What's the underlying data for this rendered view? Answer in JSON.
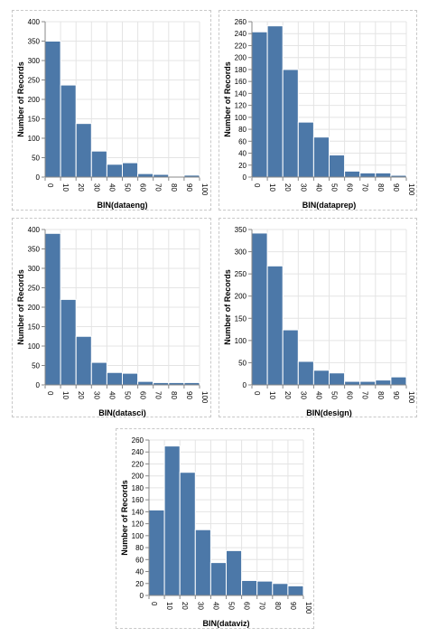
{
  "chart_data": [
    {
      "type": "bar",
      "xlabel": "BIN(dataeng)",
      "ylabel": "Number of Records",
      "xlim": [
        0,
        100
      ],
      "ylim": [
        0,
        400
      ],
      "x_ticks": [
        "0",
        "10",
        "20",
        "30",
        "40",
        "50",
        "60",
        "70",
        "80",
        "90",
        "100"
      ],
      "y_ticks": [
        "0",
        "50",
        "100",
        "150",
        "200",
        "250",
        "300",
        "350",
        "400"
      ],
      "grid": true,
      "bins": [
        [
          0,
          10
        ],
        [
          10,
          20
        ],
        [
          20,
          30
        ],
        [
          30,
          40
        ],
        [
          40,
          50
        ],
        [
          50,
          60
        ],
        [
          60,
          70
        ],
        [
          70,
          80
        ],
        [
          80,
          90
        ],
        [
          90,
          100
        ]
      ],
      "values": [
        350,
        237,
        138,
        67,
        33,
        37,
        9,
        7,
        2,
        5
      ]
    },
    {
      "type": "bar",
      "xlabel": "BIN(dataprep)",
      "ylabel": "Number of Records",
      "xlim": [
        0,
        100
      ],
      "ylim": [
        0,
        260
      ],
      "x_ticks": [
        "0",
        "10",
        "20",
        "30",
        "40",
        "50",
        "60",
        "70",
        "80",
        "90",
        "100"
      ],
      "y_ticks": [
        "0",
        "20",
        "40",
        "60",
        "80",
        "100",
        "120",
        "140",
        "160",
        "180",
        "200",
        "220",
        "240",
        "260"
      ],
      "grid": true,
      "bins": [
        [
          0,
          10
        ],
        [
          10,
          20
        ],
        [
          20,
          30
        ],
        [
          30,
          40
        ],
        [
          40,
          50
        ],
        [
          50,
          60
        ],
        [
          60,
          70
        ],
        [
          70,
          80
        ],
        [
          80,
          90
        ],
        [
          90,
          100
        ]
      ],
      "values": [
        243,
        253,
        180,
        92,
        67,
        37,
        10,
        7,
        7,
        3
      ]
    },
    {
      "type": "bar",
      "xlabel": "BIN(datasci)",
      "ylabel": "Number of Records",
      "xlim": [
        0,
        100
      ],
      "ylim": [
        0,
        400
      ],
      "x_ticks": [
        "0",
        "10",
        "20",
        "30",
        "40",
        "50",
        "60",
        "70",
        "80",
        "90",
        "100"
      ],
      "y_ticks": [
        "0",
        "50",
        "100",
        "150",
        "200",
        "250",
        "300",
        "350",
        "400"
      ],
      "grid": true,
      "bins": [
        [
          0,
          10
        ],
        [
          10,
          20
        ],
        [
          20,
          30
        ],
        [
          30,
          40
        ],
        [
          40,
          50
        ],
        [
          50,
          60
        ],
        [
          60,
          70
        ],
        [
          70,
          80
        ],
        [
          80,
          90
        ],
        [
          90,
          100
        ]
      ],
      "values": [
        390,
        220,
        125,
        58,
        32,
        30,
        9,
        6,
        6,
        6
      ]
    },
    {
      "type": "bar",
      "xlabel": "BIN(design)",
      "ylabel": "Number of Records",
      "xlim": [
        0,
        100
      ],
      "ylim": [
        0,
        350
      ],
      "x_ticks": [
        "0",
        "10",
        "20",
        "30",
        "40",
        "50",
        "60",
        "70",
        "80",
        "90",
        "100"
      ],
      "y_ticks": [
        "0",
        "50",
        "100",
        "150",
        "200",
        "250",
        "300",
        "350"
      ],
      "grid": true,
      "bins": [
        [
          0,
          10
        ],
        [
          10,
          20
        ],
        [
          20,
          30
        ],
        [
          30,
          40
        ],
        [
          40,
          50
        ],
        [
          50,
          60
        ],
        [
          60,
          70
        ],
        [
          70,
          80
        ],
        [
          80,
          90
        ],
        [
          90,
          100
        ]
      ],
      "values": [
        342,
        268,
        124,
        53,
        33,
        27,
        8,
        8,
        11,
        18
      ]
    },
    {
      "type": "bar",
      "xlabel": "BIN(dataviz)",
      "ylabel": "Number of Records",
      "xlim": [
        0,
        100
      ],
      "ylim": [
        0,
        260
      ],
      "x_ticks": [
        "0",
        "10",
        "20",
        "30",
        "40",
        "50",
        "60",
        "70",
        "80",
        "90",
        "100"
      ],
      "y_ticks": [
        "0",
        "20",
        "40",
        "60",
        "80",
        "100",
        "120",
        "140",
        "160",
        "180",
        "200",
        "220",
        "240",
        "260"
      ],
      "grid": true,
      "bins": [
        [
          0,
          10
        ],
        [
          10,
          20
        ],
        [
          20,
          30
        ],
        [
          30,
          40
        ],
        [
          40,
          50
        ],
        [
          50,
          60
        ],
        [
          60,
          70
        ],
        [
          70,
          80
        ],
        [
          80,
          90
        ],
        [
          90,
          100
        ]
      ],
      "values": [
        143,
        250,
        206,
        110,
        55,
        75,
        25,
        24,
        20,
        16
      ]
    }
  ],
  "colors": {
    "bar": "#4c78a8",
    "grid": "#e4e4e4",
    "axis": "#888888",
    "frame": "#c8c8c8"
  }
}
